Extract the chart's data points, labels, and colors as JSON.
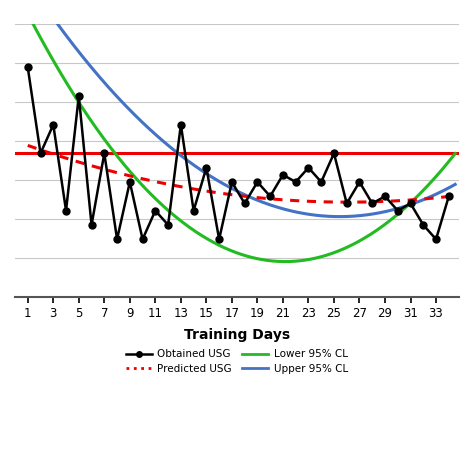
{
  "x_data": [
    1,
    2,
    3,
    4,
    5,
    6,
    7,
    8,
    9,
    10,
    11,
    12,
    13,
    14,
    15,
    16,
    17,
    18,
    19,
    20,
    21,
    22,
    23,
    24,
    25,
    26,
    27,
    28,
    29,
    30,
    31,
    32,
    33,
    34
  ],
  "obtained_usg": [
    1.032,
    1.02,
    1.024,
    1.012,
    1.028,
    1.01,
    1.02,
    1.008,
    1.016,
    1.008,
    1.012,
    1.01,
    1.024,
    1.012,
    1.018,
    1.008,
    1.016,
    1.013,
    1.016,
    1.014,
    1.017,
    1.016,
    1.018,
    1.016,
    1.02,
    1.013,
    1.016,
    1.013,
    1.014,
    1.012,
    1.013,
    1.01,
    1.008,
    1.014
  ],
  "xlabel": "Training Days",
  "tick_labels": [
    "1",
    "3",
    "5",
    "7",
    "9",
    "11",
    "13",
    "15",
    "17",
    "19",
    "21",
    "23",
    "25",
    "27",
    "29",
    "31",
    "33"
  ],
  "tick_positions": [
    1,
    3,
    5,
    7,
    9,
    11,
    13,
    15,
    17,
    19,
    21,
    23,
    25,
    27,
    29,
    31,
    33
  ],
  "obtained_color": "#000000",
  "predicted_color": "#ee0000",
  "lower_cl_color": "#22bb22",
  "upper_cl_color": "#4472c4",
  "horizontal_line_color": "#ee0000",
  "background_color": "#ffffff",
  "grid_color": "#c8c8c8",
  "horiz_line_y": 1.02,
  "ylim_min": 1.0,
  "ylim_max": 1.038,
  "xlim_min": 0.0,
  "xlim_max": 34.8,
  "n_grid_lines": 8
}
